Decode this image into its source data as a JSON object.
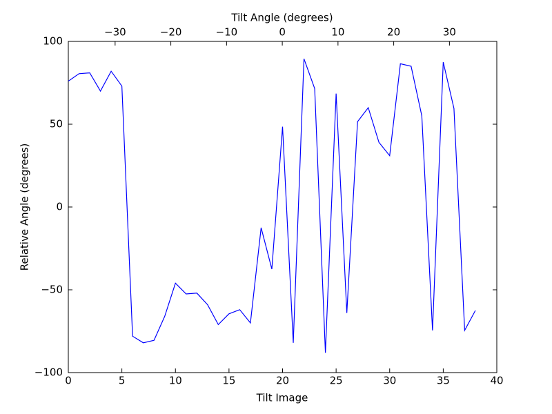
{
  "chart_data": {
    "type": "line",
    "x_label": "Tilt Image",
    "y_label": "Relative Angle (degrees)",
    "x2_label": "Tilt Angle (degrees)",
    "x": [
      0,
      1,
      2,
      3,
      4,
      5,
      6,
      7,
      8,
      9,
      10,
      11,
      12,
      13,
      14,
      15,
      16,
      17,
      18,
      19,
      20,
      21,
      22,
      23,
      24,
      25,
      26,
      27,
      28,
      29,
      30,
      31,
      32,
      33,
      34,
      35,
      36,
      37,
      38
    ],
    "series": [
      {
        "color": "#0000ff",
        "values": [
          76,
          80.5,
          81,
          70,
          82,
          73,
          -78,
          -82,
          -80.5,
          -66,
          -46,
          -52.5,
          -52,
          -59,
          -71,
          -64.5,
          -62,
          -70,
          -12.5,
          -37.5,
          48.5,
          -82,
          89.5,
          71.5,
          -88,
          68.5,
          -64,
          51.5,
          60,
          39,
          31,
          86.5,
          85,
          55,
          -74.5,
          87.5,
          59.5,
          -74.5,
          -62.5
        ]
      }
    ],
    "xlim": [
      0,
      40
    ],
    "xticks": [
      0,
      5,
      10,
      15,
      20,
      25,
      30,
      35,
      40
    ],
    "ylim": [
      -100,
      100
    ],
    "yticks": [
      {
        "value": -100,
        "label": "−100"
      },
      {
        "value": -50,
        "label": "−50"
      },
      0,
      50,
      100
    ],
    "x2lim": [
      -38.4,
      38.5
    ],
    "x2ticks": [
      {
        "value": -30,
        "label": "−30"
      },
      {
        "value": -20,
        "label": "−20"
      },
      {
        "value": -10,
        "label": "−10"
      },
      0,
      10,
      20,
      30
    ]
  }
}
